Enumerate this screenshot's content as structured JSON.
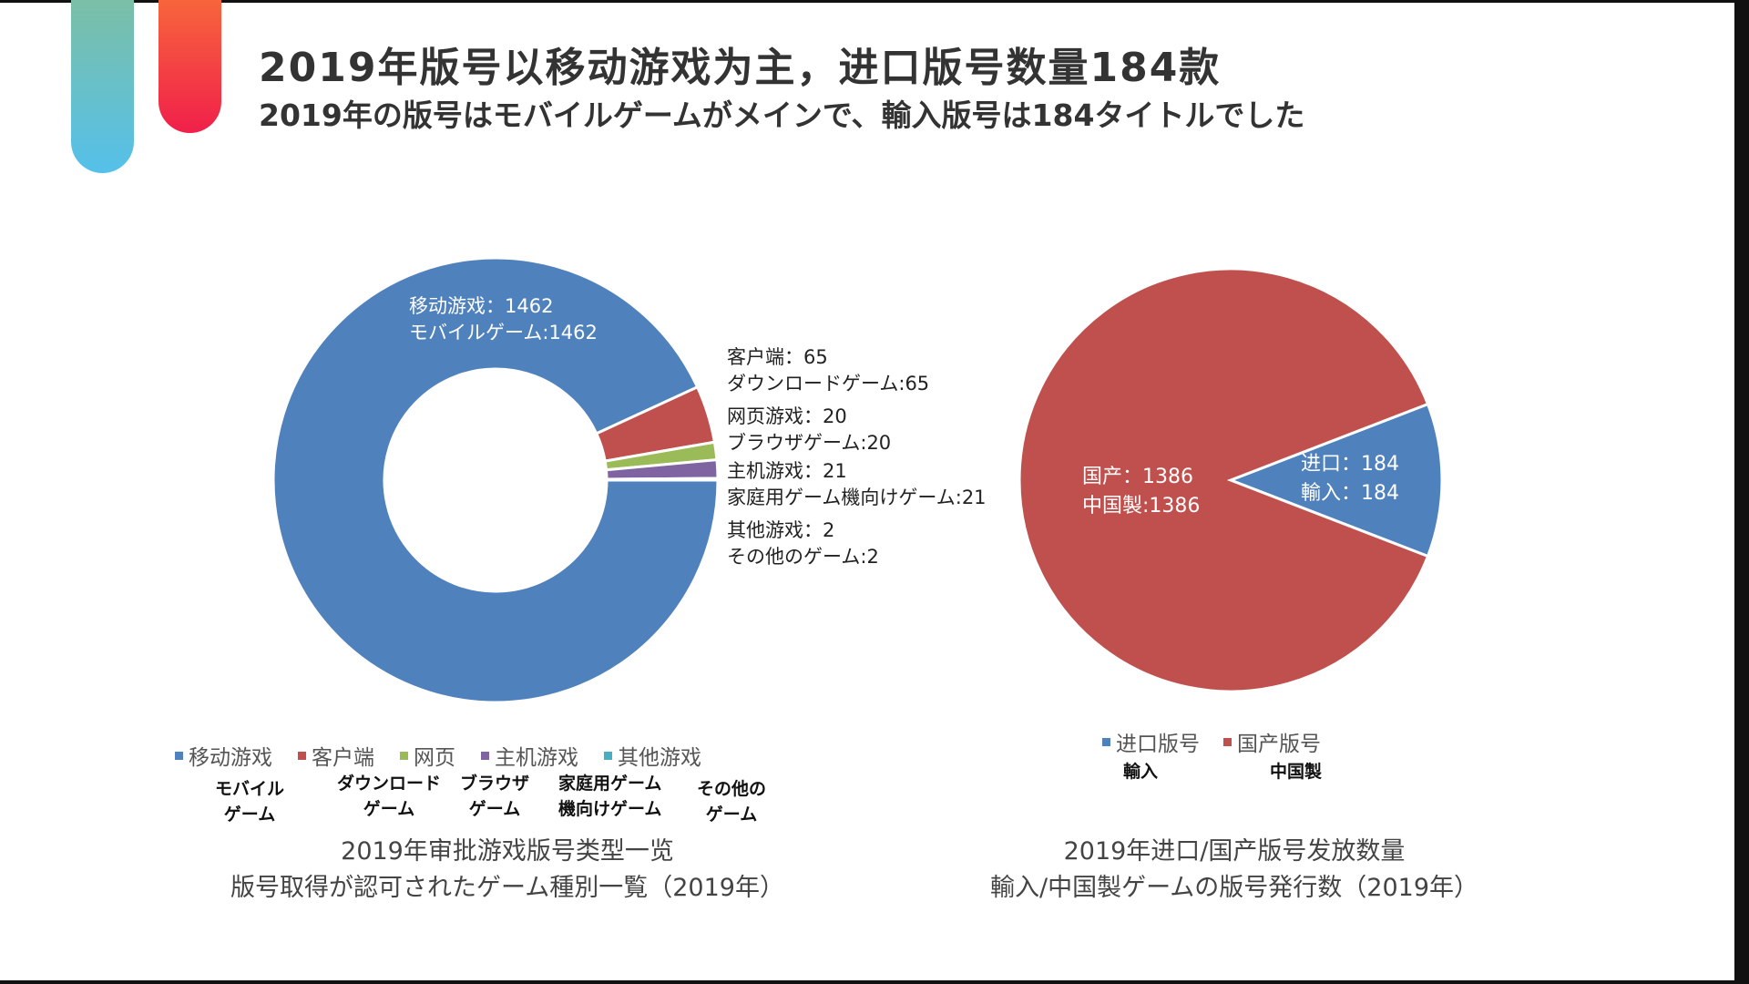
{
  "header": {
    "title": "2019年版号以移动游戏为主，进口版号数量184款",
    "subtitle": "2019年の版号はモバイルゲームがメインで、輸入版号は184タイトルでした"
  },
  "chart_data": [
    {
      "type": "pie",
      "variant": "donut",
      "title": "2019年审批游戏版号类型一览",
      "title_ja": "版号取得が認可されたゲーム種別一覧（2019年）",
      "categories": [
        "移动游戏",
        "客户端",
        "网页",
        "主机游戏",
        "其他游戏"
      ],
      "categories_ja": [
        "モバイル\nゲーム",
        "ダウンロード\nゲーム",
        "ブラウザ\nゲーム",
        "家庭用ゲーム\n機向けゲーム",
        "その他の\nゲーム"
      ],
      "values": [
        1462,
        65,
        20,
        21,
        2
      ],
      "colors": [
        "#4F81BD",
        "#C0504D",
        "#9BBB59",
        "#8064A2",
        "#4BACC6"
      ],
      "data_labels": [
        [
          "移动游戏：1462",
          "モバイルゲーム:1462"
        ],
        [
          "客户端：65",
          "ダウンロードゲーム:65"
        ],
        [
          "网页游戏：20",
          "ブラウザゲーム:20"
        ],
        [
          "主机游戏：21",
          "家庭用ゲーム機向けゲーム:21"
        ],
        [
          "其他游戏：2",
          "その他のゲーム:2"
        ]
      ],
      "legend": "bottom"
    },
    {
      "type": "pie",
      "title": "2019年进口/国产版号发放数量",
      "title_ja": "輸入/中国製ゲームの版号発行数（2019年）",
      "categories": [
        "进口版号",
        "国产版号"
      ],
      "categories_ja": [
        "輸入",
        "中国製"
      ],
      "values": [
        184,
        1386
      ],
      "colors": [
        "#4F81BD",
        "#C0504D"
      ],
      "data_labels": [
        [
          "进口：184",
          "輸入：184"
        ],
        [
          "国产：1386",
          "中国製:1386"
        ]
      ],
      "legend": "bottom"
    }
  ]
}
